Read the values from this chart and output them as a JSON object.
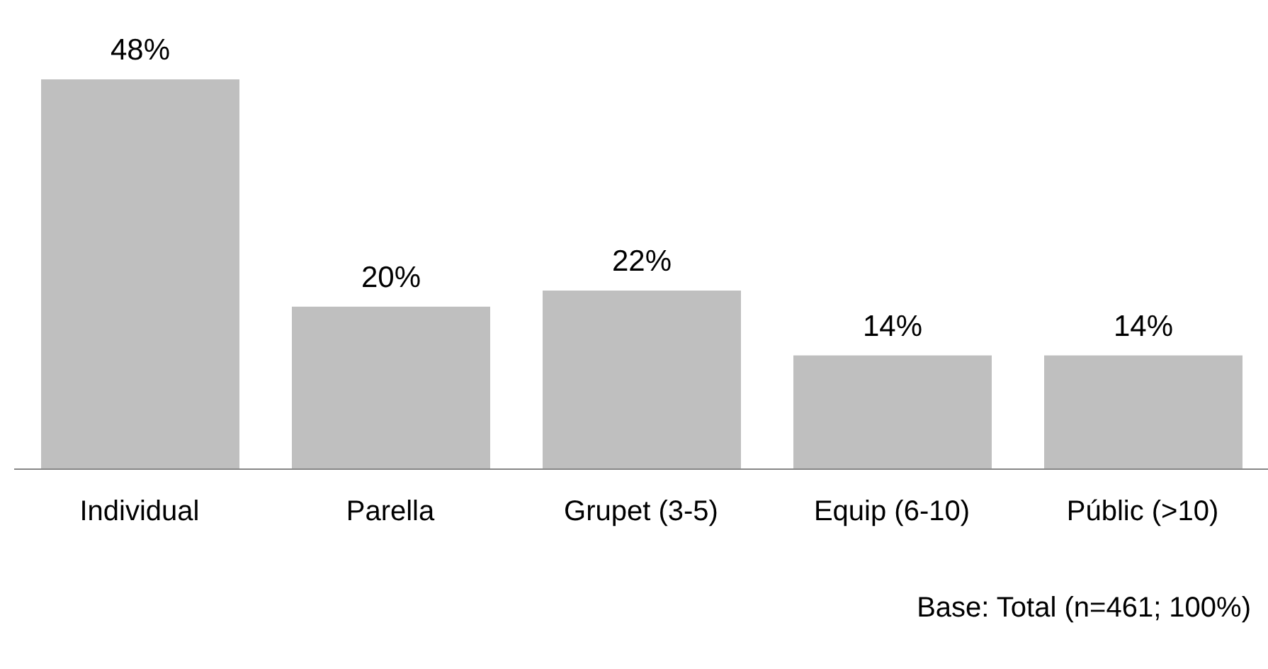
{
  "chart_data": {
    "type": "bar",
    "categories": [
      "Individual",
      "Parella",
      "Grupet (3-5)",
      "Equip (6-10)",
      "Públic (>10)"
    ],
    "values": [
      48,
      20,
      22,
      14,
      14
    ],
    "value_labels": [
      "48%",
      "20%",
      "22%",
      "14%",
      "14%"
    ],
    "color": "#bfbfbf",
    "annotations": [
      "Base: Total (n=461; 100%)"
    ]
  }
}
